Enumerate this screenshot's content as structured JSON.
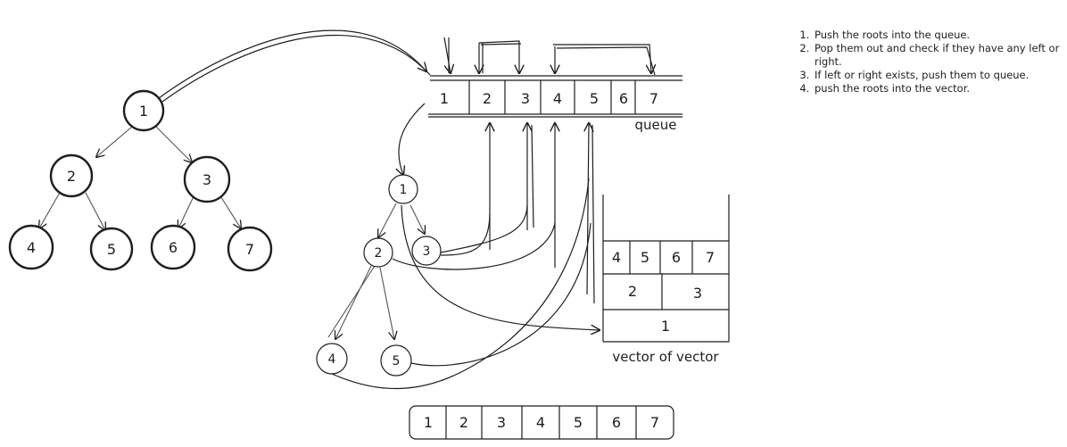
{
  "tree_left": {
    "nodes": [
      "1",
      "2",
      "3",
      "4",
      "5",
      "6",
      "7"
    ]
  },
  "queue": {
    "cells": [
      "1",
      "2",
      "3",
      "4",
      "5",
      "6",
      "7"
    ],
    "label": "queue"
  },
  "tree_mid": {
    "nodes": [
      "1",
      "2",
      "3",
      "4",
      "5"
    ]
  },
  "vector": {
    "rows": [
      [
        "4",
        "5",
        "6",
        "7"
      ],
      [
        "2",
        "3"
      ],
      [
        "1"
      ]
    ],
    "label": "vector of vector"
  },
  "result": {
    "cells": [
      "1",
      "2",
      "3",
      "4",
      "5",
      "6",
      "7"
    ]
  },
  "notes": [
    "Push the roots into the queue.",
    "Pop them out and check if they have any left or right.",
    "If left or right exists, push them to queue.",
    "push the roots into the vector."
  ]
}
